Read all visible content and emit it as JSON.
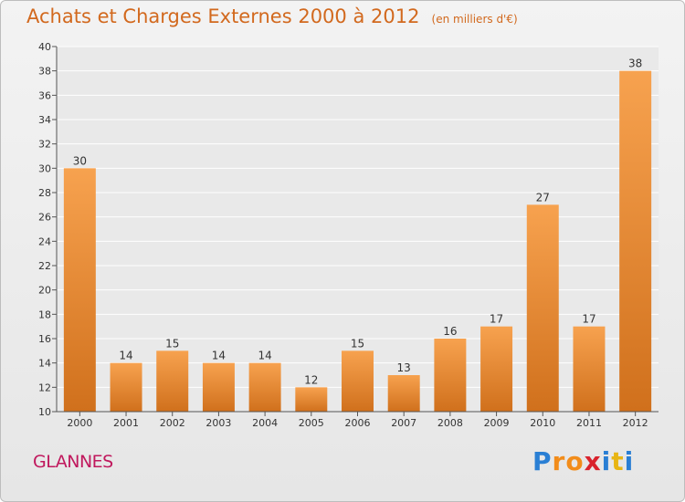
{
  "header": {
    "title": "Achats et Charges Externes 2000 à 2012",
    "unit": "(en milliers d'€)"
  },
  "place": "GLANNES",
  "brand": {
    "letters": [
      "P",
      "r",
      "o",
      "x",
      "i",
      "t",
      "i"
    ],
    "colors": [
      "#2a7fd4",
      "#f28c1a",
      "#f28c1a",
      "#d9232d",
      "#2a7fd4",
      "#e8b514",
      "#2a7fd4"
    ]
  },
  "colors": {
    "bar_light": "#f7a24f",
    "bar_dark": "#d0701c",
    "title": "#d2691e",
    "place": "#c0185d"
  },
  "chart_data": {
    "type": "bar",
    "categories": [
      "2000",
      "2001",
      "2002",
      "2003",
      "2004",
      "2005",
      "2006",
      "2007",
      "2008",
      "2009",
      "2010",
      "2011",
      "2012"
    ],
    "values": [
      30,
      14,
      15,
      14,
      14,
      12,
      15,
      13,
      16,
      17,
      27,
      17,
      38
    ],
    "title": "Achats et Charges Externes 2000 à 2012",
    "xlabel": "",
    "ylabel": "",
    "ylim": [
      10,
      40
    ],
    "yticks": [
      10,
      12,
      14,
      16,
      18,
      20,
      22,
      24,
      26,
      28,
      30,
      32,
      34,
      36,
      38,
      40
    ],
    "grid": true,
    "data_labels": true
  }
}
